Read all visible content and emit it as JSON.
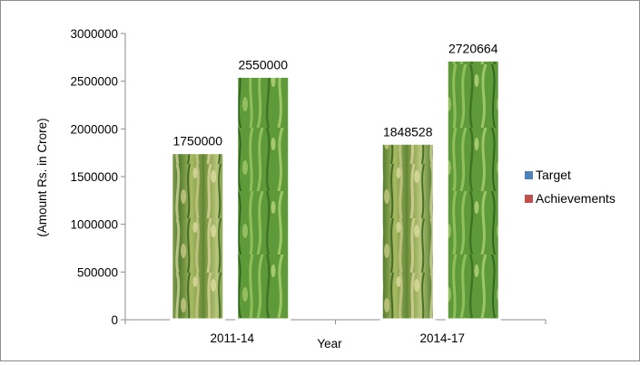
{
  "chart_data": {
    "type": "bar",
    "title": "",
    "xlabel": "Year",
    "ylabel": "(Amount Rs. in Crore)",
    "categories": [
      "2011-14",
      "2014-17"
    ],
    "series": [
      {
        "name": "Target",
        "values": [
          1750000,
          1848528
        ],
        "color": "#4f81bd"
      },
      {
        "name": "Achievements",
        "values": [
          2550000,
          2720664
        ],
        "color": "#c0504d"
      }
    ],
    "ylim": [
      0,
      3000000
    ],
    "yticks": [
      0,
      500000,
      1000000,
      1500000,
      2000000,
      2500000,
      3000000
    ],
    "data_labels": true,
    "grid": false,
    "legend_position": "right",
    "bar_fill": "rice-crop-photo-texture"
  }
}
